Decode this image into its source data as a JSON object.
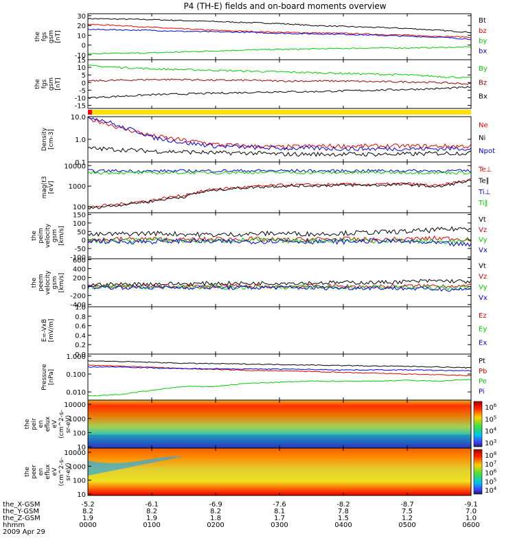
{
  "title": "P4 (TH-E) fields and on-board moments overview",
  "footer": {
    "row_labels": [
      "the_X-GSM",
      "the_Y-GSM",
      "the_Z-GSM",
      "hhmm",
      "2009 Apr 29"
    ],
    "columns": [
      [
        "-5.2",
        "8.2",
        "1.9",
        "0000"
      ],
      [
        "-6.1",
        "8.2",
        "1.9",
        "0100"
      ],
      [
        "-6.9",
        "8.2",
        "1.8",
        "0200"
      ],
      [
        "-7.6",
        "8.1",
        "1.7",
        "0300"
      ],
      [
        "-8.2",
        "7.8",
        "1.5",
        "0400"
      ],
      [
        "-8.7",
        "7.5",
        "1.2",
        "0500"
      ],
      [
        "-9.1",
        "7.0",
        "1.0",
        "0600"
      ]
    ]
  },
  "chart_data": [
    {
      "id": "fgs-gsm",
      "type": "line",
      "ylabel": [
        "the",
        "fgs",
        "gsm",
        "[nT]"
      ],
      "ylim": [
        -15,
        32
      ],
      "yticks": [
        "30",
        "20",
        "10",
        "0",
        "-10"
      ],
      "ytick_values": [
        30,
        20,
        10,
        0,
        -10
      ],
      "series": [
        {
          "name": "Bt",
          "color": "#000000",
          "values": [
            27,
            26.5,
            26,
            25,
            24,
            23,
            22,
            20,
            19,
            18,
            17,
            15,
            13
          ]
        },
        {
          "name": "bz",
          "color": "#dd0000",
          "values": [
            21,
            20,
            18,
            16.5,
            15,
            14,
            13,
            12.5,
            12,
            11,
            10,
            9,
            8
          ]
        },
        {
          "name": "by",
          "color": "#00cc00",
          "values": [
            -9,
            -8.5,
            -8,
            -7,
            -6,
            -5,
            -4.5,
            -4,
            -3.5,
            -3,
            -3,
            -2.5,
            -2
          ]
        },
        {
          "name": "bx",
          "color": "#0000dd",
          "values": [
            16,
            15.5,
            15,
            14,
            13.5,
            13,
            12,
            11.5,
            11,
            10,
            9,
            8,
            6
          ]
        }
      ]
    },
    {
      "id": "fgs-gsm-dp",
      "type": "line",
      "ylabel": [
        "the",
        "fgs",
        "gsm",
        "[nT]"
      ],
      "ylim": [
        -17,
        15
      ],
      "yticks": [
        "15",
        "10",
        "5",
        "0",
        "-5",
        "-10",
        "-15"
      ],
      "ytick_values": [
        15,
        10,
        5,
        0,
        -5,
        -10,
        -15
      ],
      "series": [
        {
          "name": "By",
          "color": "#00cc00",
          "values": [
            11,
            10,
            9,
            8.5,
            8,
            7.5,
            7,
            6.5,
            6,
            5.5,
            5,
            4,
            3
          ]
        },
        {
          "name": "Bz",
          "color": "#990000",
          "values": [
            1,
            1.5,
            2,
            2,
            1.5,
            1.5,
            1,
            1,
            1,
            0.5,
            0.5,
            0,
            -1
          ]
        },
        {
          "name": "Bx",
          "color": "#000000",
          "values": [
            -10,
            -9,
            -8,
            -7.5,
            -7,
            -6.5,
            -6,
            -6,
            -5.5,
            -5,
            -4.5,
            -4,
            -3
          ]
        }
      ]
    },
    {
      "id": "density",
      "type": "line",
      "scale": "log",
      "ylabel": [
        "Density",
        "[cm-3]"
      ],
      "ylim": [
        0.1,
        10
      ],
      "yticks": [
        "10.0",
        "1.0",
        "0.1"
      ],
      "ytick_values": [
        10,
        1,
        0.1
      ],
      "series": [
        {
          "name": "Ne",
          "color": "#dd0000",
          "values": [
            8,
            3,
            1.4,
            0.9,
            0.6,
            0.5,
            0.45,
            0.5,
            0.5,
            0.5,
            0.5,
            0.5,
            0.5
          ]
        },
        {
          "name": "Ni",
          "color": "#000000",
          "values": [
            0.4,
            0.35,
            0.3,
            0.28,
            0.25,
            0.25,
            0.22,
            0.22,
            0.22,
            0.22,
            0.22,
            0.24,
            0.25
          ]
        },
        {
          "name": "Npot",
          "color": "#0000dd",
          "values": [
            10,
            3.5,
            1.2,
            0.7,
            0.5,
            0.45,
            0.4,
            0.4,
            0.38,
            0.38,
            0.38,
            0.38,
            0.4
          ]
        }
      ]
    },
    {
      "id": "temperature",
      "type": "line",
      "scale": "log",
      "ylabel": [
        "mag(t3",
        "[eV]"
      ],
      "ylim": [
        50,
        15000
      ],
      "yticks": [
        "10000",
        "1000",
        "100"
      ],
      "ytick_values": [
        10000,
        1000,
        100
      ],
      "series": [
        {
          "name": "Te⊥",
          "color": "#dd0000",
          "values": [
            90,
            130,
            200,
            350,
            700,
            900,
            1100,
            1150,
            1200,
            1200,
            1300,
            1000,
            2000
          ]
        },
        {
          "name": "Te∥",
          "color": "#000000",
          "values": [
            80,
            120,
            180,
            300,
            650,
            850,
            1000,
            1050,
            1100,
            1100,
            1200,
            900,
            1800
          ]
        },
        {
          "name": "Ti⊥",
          "color": "#0000dd",
          "values": [
            5500,
            5500,
            5400,
            5500,
            5500,
            5600,
            5600,
            5500,
            5500,
            5600,
            5600,
            5500,
            5500
          ]
        },
        {
          "name": "Ti∥",
          "color": "#00cc00",
          "values": [
            4500,
            4500,
            4400,
            4500,
            4500,
            4600,
            4600,
            4500,
            4500,
            4600,
            4600,
            4500,
            4500
          ]
        }
      ]
    },
    {
      "id": "peim-velocity",
      "type": "line",
      "ylabel": [
        "the",
        "peim",
        "velocity",
        "gsm",
        "[km/s]"
      ],
      "ylim": [
        -110,
        160
      ],
      "yticks": [
        "150",
        "100",
        "50",
        "0",
        "-50",
        "-100"
      ],
      "ytick_values": [
        150,
        100,
        50,
        0,
        -50,
        -100
      ],
      "series": [
        {
          "name": "Vt",
          "color": "#000000",
          "values": [
            30,
            35,
            40,
            35,
            30,
            35,
            40,
            35,
            40,
            45,
            50,
            60,
            70
          ]
        },
        {
          "name": "Vz",
          "color": "#dd0000",
          "values": [
            0,
            5,
            5,
            0,
            5,
            5,
            0,
            5,
            5,
            0,
            5,
            10,
            5
          ]
        },
        {
          "name": "Vy",
          "color": "#00cc00",
          "values": [
            -5,
            -5,
            0,
            -5,
            -5,
            0,
            -5,
            -5,
            0,
            -5,
            -5,
            -10,
            -10
          ]
        },
        {
          "name": "Vx",
          "color": "#0000dd",
          "values": [
            -5,
            -10,
            -10,
            -5,
            -10,
            -10,
            -5,
            -10,
            -10,
            -5,
            -10,
            -20,
            -30
          ]
        }
      ]
    },
    {
      "id": "peem-velocity",
      "type": "line",
      "ylabel": [
        "the",
        "peem",
        "velocity",
        "gsm",
        "[km/s]"
      ],
      "ylim": [
        -450,
        620
      ],
      "yticks": [
        "600",
        "400",
        "200",
        "0",
        "-200",
        "-400"
      ],
      "ytick_values": [
        600,
        400,
        200,
        0,
        -200,
        -400
      ],
      "series": [
        {
          "name": "Vt",
          "color": "#000000",
          "values": [
            40,
            50,
            60,
            60,
            70,
            70,
            80,
            80,
            90,
            90,
            110,
            130,
            110
          ]
        },
        {
          "name": "Vz",
          "color": "#dd0000",
          "values": [
            0,
            5,
            5,
            0,
            10,
            5,
            0,
            10,
            5,
            0,
            10,
            20,
            10
          ]
        },
        {
          "name": "Vy",
          "color": "#00cc00",
          "values": [
            -10,
            -10,
            -15,
            -10,
            -15,
            -15,
            -10,
            -15,
            -20,
            -15,
            -20,
            -30,
            -30
          ]
        },
        {
          "name": "Vx",
          "color": "#0000dd",
          "values": [
            -10,
            -20,
            -20,
            -20,
            -25,
            -25,
            -20,
            -30,
            -30,
            -30,
            -40,
            -60,
            -60
          ]
        }
      ]
    },
    {
      "id": "efield",
      "type": "line",
      "ylabel": [
        "E=-VxB",
        "[mV/m]"
      ],
      "ylim": [
        0,
        1
      ],
      "yticks": [
        "1.0",
        "0.8",
        "0.6",
        "0.4",
        "0.2",
        "0.0"
      ],
      "ytick_values": [
        1.0,
        0.8,
        0.6,
        0.4,
        0.2,
        0.0
      ],
      "series": [
        {
          "name": "Ez",
          "color": "#dd0000",
          "values": []
        },
        {
          "name": "Ey",
          "color": "#00cc00",
          "values": []
        },
        {
          "name": "Ex",
          "color": "#0000dd",
          "values": []
        }
      ]
    },
    {
      "id": "pressure",
      "type": "line",
      "scale": "log",
      "ylabel": [
        "Pressure",
        "[nPa]"
      ],
      "ylim": [
        0.0035,
        1.3
      ],
      "yticks": [
        "1.000",
        "0.100",
        "0.010"
      ],
      "ytick_values": [
        1,
        0.1,
        0.01
      ],
      "series": [
        {
          "name": "Pt",
          "color": "#000000",
          "values": [
            0.55,
            0.5,
            0.45,
            0.4,
            0.38,
            0.36,
            0.34,
            0.32,
            0.3,
            0.28,
            0.27,
            0.25,
            0.22
          ]
        },
        {
          "name": "Pb",
          "color": "#dd0000",
          "values": [
            0.32,
            0.28,
            0.24,
            0.2,
            0.18,
            0.16,
            0.15,
            0.14,
            0.12,
            0.11,
            0.1,
            0.09,
            0.08
          ]
        },
        {
          "name": "Pe",
          "color": "#00cc00",
          "values": [
            0.006,
            0.007,
            0.012,
            0.02,
            0.02,
            0.03,
            0.035,
            0.04,
            0.04,
            0.04,
            0.045,
            0.04,
            0.05
          ]
        },
        {
          "name": "Pi",
          "color": "#0000dd",
          "values": [
            0.25,
            0.25,
            0.22,
            0.2,
            0.2,
            0.19,
            0.19,
            0.18,
            0.17,
            0.17,
            0.17,
            0.16,
            0.15
          ]
        }
      ]
    },
    {
      "id": "peir-eflux",
      "type": "heatmap",
      "ylabel": [
        "the",
        "peir",
        "en",
        "eflux",
        "eV",
        "(cm^2-s-",
        "sr-eV)"
      ],
      "yticks": [
        "10000",
        "1000",
        "100",
        "10"
      ],
      "ytick_values": [
        10000,
        1000,
        100,
        10
      ],
      "colorbar": {
        "ticks": [
          "10^6",
          "10^5",
          "10^4",
          "10^3"
        ]
      }
    },
    {
      "id": "peer-eflux",
      "type": "heatmap",
      "ylabel": [
        "the",
        "peer",
        "en",
        "eflux",
        "eV",
        "(cm^2-s-",
        "sr-eV)"
      ],
      "yticks": [
        "10000",
        "1000",
        "100",
        "10"
      ],
      "ytick_values": [
        10000,
        1000,
        100,
        10
      ],
      "colorbar": {
        "ticks": [
          "10^8",
          "10^7",
          "10^6",
          "10^5",
          "10^4"
        ]
      }
    }
  ]
}
